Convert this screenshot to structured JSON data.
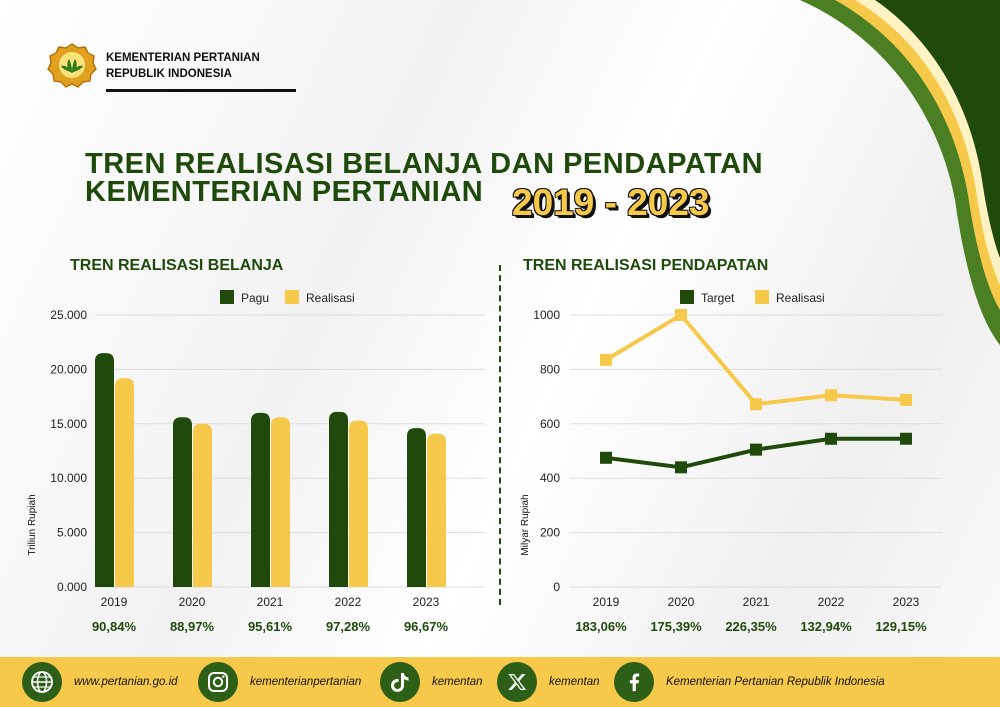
{
  "header": {
    "org_line1": "KEMENTERIAN PERTANIAN",
    "org_line2": "REPUBLIK INDONESIA",
    "title_line1": "TREN REALISASI BELANJA DAN PENDAPATAN",
    "title_line2": "KEMENTERIAN PERTANIAN",
    "years": "2019 - 2023"
  },
  "colors": {
    "dark_green": "#1f4a0c",
    "yellow": "#f6c94a",
    "footer": "#f6c94a"
  },
  "chart_data": [
    {
      "type": "bar",
      "title": "TREN REALISASI BELANJA",
      "ylabel": "Triliun Rupiah",
      "categories": [
        "2019",
        "2020",
        "2021",
        "2022",
        "2023"
      ],
      "series": [
        {
          "name": "Pagu",
          "color": "#1f4a0c",
          "values": [
            21500,
            15600,
            16000,
            16100,
            14600
          ]
        },
        {
          "name": "Realisasi",
          "color": "#f6c94a",
          "values": [
            19200,
            15000,
            15600,
            15300,
            14100
          ]
        }
      ],
      "yticks": [
        "0.000",
        "5.000",
        "10.000",
        "15.000",
        "20.000",
        "25.000"
      ],
      "ylim": [
        0,
        25000
      ],
      "percent_labels": [
        "90,84%",
        "88,97%",
        "95,61%",
        "97,28%",
        "96,67%"
      ],
      "legend": "top"
    },
    {
      "type": "line",
      "title": "TREN REALISASI PENDAPATAN",
      "ylabel": "Milyar Rupiah",
      "x": [
        "2019",
        "2020",
        "2021",
        "2022",
        "2023"
      ],
      "series": [
        {
          "name": "Target",
          "color": "#1f4a0c",
          "values": [
            475,
            440,
            505,
            545,
            545
          ]
        },
        {
          "name": "Realisasi",
          "color": "#f6c94a",
          "values": [
            835,
            1000,
            672,
            705,
            688
          ]
        }
      ],
      "yticks": [
        "0",
        "200",
        "400",
        "600",
        "800",
        "1000"
      ],
      "ylim": [
        0,
        1000
      ],
      "percent_labels": [
        "183,06%",
        "175,39%",
        "226,35%",
        "132,94%",
        "129,15%"
      ],
      "legend": "top"
    }
  ],
  "footer": {
    "items": [
      {
        "icon": "globe-icon",
        "text": "www.pertanian.go.id"
      },
      {
        "icon": "instagram-icon",
        "text": "kementerianpertanian"
      },
      {
        "icon": "tiktok-icon",
        "text": "kementan"
      },
      {
        "icon": "x-icon",
        "text": "kementan"
      },
      {
        "icon": "facebook-icon",
        "text": "Kementerian Pertanian Republik Indonesia"
      }
    ]
  }
}
